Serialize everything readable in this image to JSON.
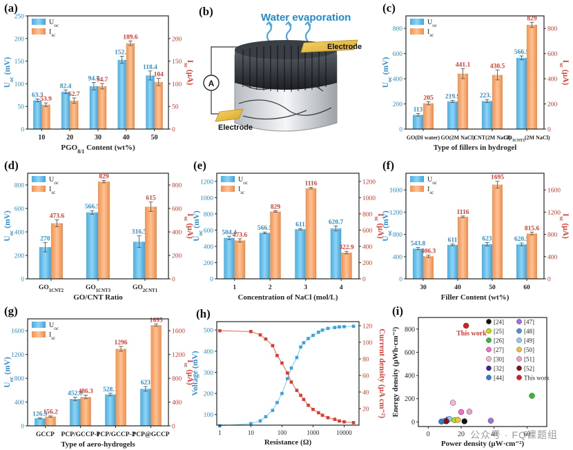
{
  "colors": {
    "blue": "#5bb8e6",
    "orange": "#f6a36a",
    "red": "#d93c2e",
    "blue_text": "#2f8fcd",
    "axis": "#222222"
  },
  "watermark": "公众号 · FQ课题组",
  "diagram": {
    "label": "(b)",
    "title": "Water evaporation",
    "electrode_top": "Electrode",
    "electrode_bottom": "Electrode",
    "meter": "A"
  },
  "chart_data": [
    {
      "id": "a",
      "label": "(a)",
      "type": "bar",
      "categories": [
        "10",
        "20",
        "30",
        "40",
        "50"
      ],
      "xlabel": "PGO_8/1 Content (wt%)",
      "ylabel_left": "U_oc (mV)",
      "ylabel_right": "I_sc (μA)",
      "ylim_left": [
        0,
        250
      ],
      "ylim_right": [
        0,
        250
      ],
      "yticks_left": [
        0,
        50,
        100,
        150,
        200,
        250
      ],
      "yticks_right": [
        0,
        50,
        100,
        150,
        200
      ],
      "series": [
        {
          "name": "U_oc",
          "axis": "left",
          "values": [
            63.3,
            82.4,
            94.7,
            152.9,
            118.4
          ],
          "errors": [
            3,
            4,
            8,
            8,
            10
          ],
          "labels": [
            "63.3",
            "82.4",
            "94.7",
            "152.9",
            "118.4"
          ]
        },
        {
          "name": "I_sc",
          "axis": "right",
          "values": [
            53.9,
            62.7,
            94.7,
            189.6,
            104
          ],
          "errors": [
            4,
            6,
            6,
            5,
            8
          ],
          "labels": [
            "53.9",
            "62.7",
            "94.7",
            "189.6",
            "104"
          ]
        }
      ]
    },
    {
      "id": "c",
      "label": "(c)",
      "type": "bar",
      "categories": [
        "GO(DI water)",
        "GO(2M NaCl)",
        "CNT(2M NaCl)",
        "GO_1CNT_3(2M NaCl)"
      ],
      "xlabel": "Type of fillers in hydrogel",
      "ylabel_left": "U_oc (mV)",
      "ylabel_right": "I_sc (μA)",
      "ylim_left": [
        0,
        900
      ],
      "ylim_right": [
        0,
        900
      ],
      "yticks_left": [
        0,
        200,
        400,
        600,
        800
      ],
      "yticks_right": [
        0,
        200,
        400,
        600,
        800
      ],
      "series": [
        {
          "name": "U_oc",
          "axis": "left",
          "values": [
            113,
            219.9,
            223.1,
            566.5
          ],
          "errors": [
            10,
            8,
            12,
            15
          ],
          "labels": [
            "113",
            "219.9",
            "223.1",
            "566.5"
          ]
        },
        {
          "name": "I_sc",
          "axis": "right",
          "values": [
            205,
            441.1,
            430.5,
            829
          ],
          "errors": [
            12,
            40,
            40,
            20
          ],
          "labels": [
            "205",
            "441.1",
            "430.5",
            "829"
          ]
        }
      ]
    },
    {
      "id": "d",
      "label": "(d)",
      "type": "bar",
      "categories": [
        "GO_1CNT_2",
        "GO_1CNT_3",
        "GO_2CNT_1"
      ],
      "xlabel": "GO/CNT Ratio",
      "ylabel_left": "U_oc (mV)",
      "ylabel_right": "I_sc (μA)",
      "ylim_left": [
        0,
        900
      ],
      "ylim_right": [
        0,
        900
      ],
      "yticks_left": [
        0,
        200,
        400,
        600,
        800
      ],
      "yticks_right": [
        0,
        200,
        400,
        600,
        800
      ],
      "series": [
        {
          "name": "U_oc",
          "axis": "left",
          "values": [
            270,
            566.5,
            316.5
          ],
          "errors": [
            40,
            15,
            50
          ],
          "labels": [
            "270",
            "566.5",
            "316.5"
          ]
        },
        {
          "name": "I_sc",
          "axis": "right",
          "values": [
            473.6,
            829,
            615
          ],
          "errors": [
            30,
            10,
            40
          ],
          "labels": [
            "473.6",
            "829",
            "615"
          ]
        }
      ]
    },
    {
      "id": "e",
      "label": "(e)",
      "type": "bar",
      "categories": [
        "1",
        "2",
        "3",
        "4"
      ],
      "xlabel": "Concentration of NaCl (mol/L)",
      "ylabel_left": "U_oc (mV)",
      "ylabel_right": "I_sc (μA)",
      "ylim_left": [
        0,
        1300
      ],
      "ylim_right": [
        0,
        1300
      ],
      "yticks_left": [
        0,
        200,
        400,
        600,
        800,
        1000,
        1200
      ],
      "yticks_right": [
        0,
        200,
        400,
        600,
        800,
        1000,
        1200
      ],
      "series": [
        {
          "name": "U_oc",
          "axis": "left",
          "values": [
            504.4,
            566.5,
            611,
            620.7
          ],
          "errors": [
            20,
            10,
            10,
            30
          ],
          "labels": [
            "504.4",
            "566.5",
            "611",
            "620.7"
          ]
        },
        {
          "name": "I_sc",
          "axis": "right",
          "values": [
            473.6,
            829,
            1116,
            322.9
          ],
          "errors": [
            20,
            10,
            10,
            15
          ],
          "labels": [
            "473.6",
            "829",
            "1116",
            "322.9"
          ]
        }
      ]
    },
    {
      "id": "f",
      "label": "(f)",
      "type": "bar",
      "categories": [
        "30",
        "40",
        "50",
        "60"
      ],
      "xlabel": "Filler Content (wt%)",
      "ylabel_left": "U_oc (mV)",
      "ylabel_right": "I_sc (μA)",
      "ylim_left": [
        0,
        1900
      ],
      "ylim_right": [
        0,
        1900
      ],
      "yticks_left": [
        0,
        400,
        800,
        1200,
        1600
      ],
      "yticks_right": [
        0,
        400,
        800,
        1200,
        1600
      ],
      "series": [
        {
          "name": "U_oc",
          "axis": "left",
          "values": [
            543.8,
            611,
            623,
            620.5
          ],
          "errors": [
            20,
            15,
            30,
            25
          ],
          "labels": [
            "543.8",
            "611",
            "623",
            "620.5"
          ]
        },
        {
          "name": "I_sc",
          "axis": "right",
          "values": [
            406.3,
            1116,
            1695,
            815.6
          ],
          "errors": [
            20,
            15,
            60,
            25
          ],
          "labels": [
            "406.3",
            "1116",
            "1695",
            "815.6"
          ]
        }
      ]
    },
    {
      "id": "g",
      "label": "(g)",
      "type": "bar",
      "categories": [
        "GCCP",
        "PCP/GCCP-1",
        "PCP/GCCP-2",
        "PCP@GCCP"
      ],
      "xlabel": "Type of aero-hydrogels",
      "ylabel_left": "U_oc (mV)",
      "ylabel_right": "I_sc (μA)",
      "ylim_left": [
        0,
        1800
      ],
      "ylim_right": [
        0,
        1800
      ],
      "yticks_left": [
        0,
        400,
        800,
        1200,
        1600
      ],
      "yticks_right": [
        0,
        400,
        800,
        1200,
        1600
      ],
      "series": [
        {
          "name": "U_oc",
          "axis": "left",
          "values": [
            126.3,
            452.8,
            528.1,
            623
          ],
          "errors": [
            10,
            30,
            20,
            40
          ],
          "labels": [
            "126.3",
            "452.8",
            "528.1",
            "623"
          ]
        },
        {
          "name": "I_sc",
          "axis": "right",
          "values": [
            156.2,
            486.3,
            1296,
            1695
          ],
          "errors": [
            10,
            30,
            40,
            20
          ],
          "labels": [
            "156.2",
            "486.3",
            "1296",
            "1695"
          ]
        }
      ]
    },
    {
      "id": "h",
      "label": "(h)",
      "type": "scatter",
      "xlabel": "Resistance (Ω)",
      "ylabel_left": "Voltage (mV)",
      "ylabel_right": "Current density (μA cm⁻²)",
      "xscale": "log",
      "xlim": [
        0.8,
        30000
      ],
      "xticks": [
        1,
        10,
        100,
        1000,
        10000
      ],
      "xticklabels": [
        "1",
        "10",
        "100",
        "1000",
        "10000"
      ],
      "ylim_left": [
        50,
        540
      ],
      "yticks_left": [
        100,
        200,
        300,
        400,
        500
      ],
      "ylim_right": [
        0,
        125
      ],
      "yticks_right": [
        20,
        40,
        60,
        80,
        100,
        120
      ],
      "series": [
        {
          "name": "Voltage",
          "axis": "left",
          "x": [
            1,
            10,
            20,
            30,
            50,
            70,
            100,
            150,
            200,
            300,
            400,
            500,
            700,
            1000,
            1500,
            2000,
            3000,
            5000,
            7000,
            10000,
            20000
          ],
          "y": [
            47,
            57,
            70,
            90,
            120,
            157,
            200,
            270,
            320,
            370,
            420,
            440,
            460,
            475,
            490,
            500,
            508,
            512,
            515,
            516,
            518
          ]
        },
        {
          "name": "Current density",
          "axis": "right",
          "x": [
            1,
            10,
            20,
            30,
            50,
            70,
            100,
            150,
            200,
            300,
            400,
            500,
            700,
            1000,
            1500,
            2000,
            3000,
            5000,
            7000,
            10000,
            20000
          ],
          "y": [
            114,
            113,
            109,
            104,
            96,
            84,
            75,
            63,
            52,
            42,
            36,
            31,
            24,
            19,
            15,
            12,
            9,
            7,
            5,
            4,
            3
          ]
        }
      ]
    },
    {
      "id": "i",
      "label": "(i)",
      "type": "scatter",
      "xlabel": "Power density (μW·cm⁻²)",
      "ylabel_left": "Energy density (μWh·cm⁻²)",
      "xlim": [
        -6,
        72
      ],
      "xticks": [
        0,
        20,
        40,
        60
      ],
      "ylim_left": [
        -40,
        900
      ],
      "yticks_left": [
        0,
        200,
        400,
        600,
        800
      ],
      "highlight_label": "This work",
      "series": [
        {
          "name": "[24]",
          "color": "#111111",
          "x": [
            22
          ],
          "y": [
            5
          ]
        },
        {
          "name": "[25]",
          "color": "#c0e000",
          "x": [
            16
          ],
          "y": [
            15
          ]
        },
        {
          "name": "[26]",
          "color": "#33bb33",
          "x": [
            63
          ],
          "y": [
            225
          ]
        },
        {
          "name": "[27]",
          "color": "#f070c8",
          "x": [
            20
          ],
          "y": [
            85
          ]
        },
        {
          "name": "[30]",
          "color": "#f4b6d8",
          "x": [
            15
          ],
          "y": [
            165
          ]
        },
        {
          "name": "[32]",
          "color": "#442299",
          "x": [
            12
          ],
          "y": [
            20
          ]
        },
        {
          "name": "[44]",
          "color": "#2f7fd0",
          "x": [
            8
          ],
          "y": [
            3
          ]
        },
        {
          "name": "[47]",
          "color": "#a070e0",
          "x": [
            38
          ],
          "y": [
            10
          ]
        },
        {
          "name": "[48]",
          "color": "#4a8fe0",
          "x": [
            10
          ],
          "y": [
            8
          ]
        },
        {
          "name": "[49]",
          "color": "#88ccf0",
          "x": [
            13
          ],
          "y": [
            25
          ]
        },
        {
          "name": "[50]",
          "color": "#f0c040",
          "x": [
            18
          ],
          "y": [
            18
          ]
        },
        {
          "name": "[51]",
          "color": "#f0a0d0",
          "x": [
            25
          ],
          "y": [
            88
          ]
        },
        {
          "name": "[52]",
          "color": "#8b1111",
          "x": [
            11
          ],
          "y": [
            5
          ]
        },
        {
          "name": "This work",
          "color": "#d62020",
          "x": [
            23
          ],
          "y": [
            829
          ]
        }
      ]
    }
  ]
}
